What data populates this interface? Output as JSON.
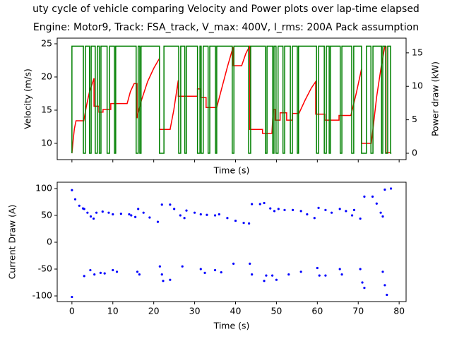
{
  "chart_data": [
    {
      "type": "line",
      "title": [
        "uty cycle of vehicle comparing Velocity and Power plots over lap-time elapsed",
        "Engine: Motor9, Track: FSA_track, V_max: 400V, I_rms: 200A Pack assumption"
      ],
      "xlabel": "Time (s)",
      "ylabel": "Velocity (m/s)",
      "y2label": "Power draw (kW)",
      "xlim": [
        -3.6,
        81.7
      ],
      "xticks": [
        0,
        10,
        20,
        30,
        40,
        50,
        60,
        70,
        80
      ],
      "xtick_labels": false,
      "ylim": [
        7.55,
        25.85
      ],
      "yticks": [
        10,
        15,
        20,
        25
      ],
      "y2lim": [
        -0.95,
        17.2
      ],
      "y2ticks": [
        0,
        5,
        10,
        15
      ],
      "series": [
        {
          "name": "Velocity",
          "color": "red",
          "axis": "y",
          "x": [
            0,
            0.3,
            0.6,
            1.0,
            2.9,
            3.5,
            4.3,
            5.4,
            5.4,
            6.6,
            6.6,
            7.6,
            7.6,
            9.5,
            9.5,
            13.5,
            14.3,
            15.2,
            15.9,
            15.9,
            17.0,
            18.5,
            20.0,
            21.4,
            21.4,
            24.0,
            24.9,
            26.0,
            26.0,
            30.7,
            30.7,
            31.4,
            31.4,
            32.8,
            32.8,
            35.4,
            36.5,
            38.0,
            39.4,
            39.4,
            41.5,
            42.5,
            43.5,
            43.5,
            46.6,
            46.6,
            48.9,
            49.2,
            49.7,
            49.7,
            50.9,
            50.9,
            52.5,
            52.5,
            53.9,
            53.9,
            55.5,
            57.0,
            58.5,
            59.6,
            59.6,
            61.8,
            61.8,
            65.3,
            65.3,
            68.2,
            69.5,
            70.8,
            70.8,
            73.2,
            74.5,
            75.6,
            76.5,
            76.8,
            76.8,
            78.0
          ],
          "values": [
            8.5,
            10.5,
            12.2,
            13.4,
            13.4,
            15.5,
            17.8,
            19.8,
            15.6,
            15.6,
            14.7,
            14.7,
            15.1,
            15.1,
            16.0,
            16.0,
            17.8,
            19.0,
            19.0,
            13.8,
            16.5,
            19.3,
            21.3,
            22.8,
            12.1,
            12.1,
            15.0,
            19.5,
            17.1,
            17.1,
            18.2,
            18.2,
            16.9,
            16.9,
            15.4,
            15.4,
            18.0,
            21.5,
            24.5,
            21.7,
            21.7,
            23.5,
            24.7,
            12.1,
            12.1,
            11.5,
            11.5,
            15.1,
            15.1,
            13.5,
            13.5,
            14.6,
            14.6,
            13.5,
            13.5,
            14.5,
            14.5,
            16.5,
            18.3,
            19.3,
            14.4,
            14.4,
            13.5,
            13.5,
            14.2,
            14.2,
            17.5,
            21.2,
            10.0,
            10.0,
            17.0,
            21.5,
            24.6,
            24.6,
            8.6,
            8.6
          ]
        },
        {
          "name": "Power",
          "color": "green",
          "axis": "y2",
          "x": [
            0,
            0,
            2.8,
            2.8,
            3.3,
            3.3,
            4.3,
            4.3,
            4.7,
            4.7,
            5.7,
            5.7,
            6.2,
            6.2,
            6.7,
            6.7,
            7.1,
            7.1,
            8.6,
            8.6,
            9.2,
            9.2,
            10.4,
            10.4,
            10.7,
            10.7,
            15.7,
            15.7,
            16.2,
            16.2,
            16.6,
            16.6,
            16.9,
            16.9,
            21.4,
            21.4,
            22.5,
            22.5,
            26.1,
            26.1,
            26.6,
            26.6,
            27.6,
            27.6,
            28.0,
            28.0,
            30.7,
            30.7,
            31.3,
            31.3,
            31.6,
            31.6,
            32.1,
            32.1,
            33.3,
            33.3,
            33.7,
            33.7,
            35.1,
            35.1,
            35.4,
            35.4,
            39.2,
            39.2,
            39.6,
            39.6,
            43.2,
            43.2,
            43.7,
            43.7,
            47.3,
            47.3,
            47.7,
            47.7,
            49.1,
            49.1,
            49.4,
            49.4,
            49.9,
            49.9,
            50.4,
            50.4,
            51.6,
            51.6,
            52.0,
            52.0,
            53.4,
            53.4,
            53.9,
            53.9,
            55.1,
            55.1,
            55.4,
            55.4,
            59.8,
            59.8,
            60.3,
            60.3,
            61.7,
            61.7,
            62.2,
            62.2,
            62.9,
            62.9,
            63.2,
            63.2,
            65.6,
            65.6,
            66.0,
            66.0,
            68.4,
            68.4,
            68.9,
            68.9,
            70.8,
            70.8,
            72.0,
            72.0,
            73.1,
            73.1,
            73.6,
            73.6,
            75.7,
            75.7,
            76.0,
            76.0,
            76.7,
            76.7,
            77.2,
            77.2,
            77.9,
            77.9,
            78.1
          ],
          "values": [
            0,
            16,
            16,
            0,
            0,
            16,
            16,
            0,
            0,
            16,
            16,
            0,
            0,
            16,
            16,
            0,
            0,
            16,
            16,
            0,
            0,
            16,
            16,
            0,
            0,
            16,
            16,
            0,
            0,
            16,
            16,
            0,
            0,
            16,
            16,
            0,
            0,
            16,
            16,
            0,
            0,
            16,
            16,
            0,
            0,
            16,
            16,
            0,
            0,
            16,
            16,
            0,
            0,
            16,
            16,
            0,
            0,
            16,
            16,
            0,
            0,
            16,
            16,
            0,
            0,
            16,
            16,
            0,
            0,
            16,
            16,
            0,
            0,
            16,
            16,
            0,
            0,
            16,
            16,
            0,
            0,
            16,
            16,
            0,
            0,
            16,
            16,
            0,
            0,
            16,
            16,
            0,
            0,
            16,
            16,
            0,
            0,
            16,
            16,
            0,
            0,
            16,
            16,
            0,
            0,
            16,
            16,
            0,
            0,
            16,
            16,
            0,
            0,
            16,
            16,
            0,
            0,
            16,
            16,
            0,
            0,
            16,
            16,
            0,
            0,
            16,
            16,
            0,
            0,
            16,
            16,
            0,
            0
          ]
        }
      ]
    },
    {
      "type": "scatter",
      "xlabel": "Time (s)",
      "ylabel": "Current Draw (A)",
      "xlim": [
        -3.6,
        81.7
      ],
      "xticks": [
        0,
        10,
        20,
        30,
        40,
        50,
        60,
        70,
        80
      ],
      "ylim": [
        -110.5,
        111.8
      ],
      "yticks": [
        -100,
        -50,
        0,
        50,
        100
      ],
      "series": [
        {
          "name": "Current",
          "color": "blue",
          "x": [
            0,
            0.8,
            1.8,
            2.7,
            3.0,
            3.8,
            4.6,
            5.3,
            6.0,
            7.5,
            9.0,
            10.0,
            12.0,
            14.0,
            14.5,
            15.5,
            16.2,
            17.5,
            19.0,
            21.0,
            22.0,
            24.0,
            25.0,
            26.5,
            27.5,
            28.0,
            30.0,
            31.5,
            33.0,
            35.0,
            36.0,
            38.0,
            40.0,
            42.0,
            43.3,
            44.0,
            46.0,
            47.0,
            48.5,
            49.5,
            50.5,
            52.0,
            54.0,
            56.0,
            57.5,
            59.3,
            60.3,
            62.0,
            63.5,
            65.5,
            67.0,
            68.5,
            69.0,
            70.5,
            71.5,
            73.5,
            74.5,
            75.5,
            76.0,
            76.5,
            78.0,
            0,
            3,
            4.5,
            5.5,
            7,
            8,
            10,
            11,
            16,
            16.5,
            21.5,
            22,
            22.3,
            24,
            27,
            31.5,
            32.5,
            35,
            36.5,
            39.5,
            43.5,
            44,
            47,
            47.5,
            49,
            50,
            53,
            56,
            60,
            60.5,
            62,
            65.5,
            66,
            70.5,
            71,
            71.5,
            76,
            76.5,
            77
          ],
          "values": [
            97,
            80,
            68,
            63,
            62,
            55,
            48,
            44,
            55,
            57,
            55,
            52,
            53,
            52,
            50,
            47,
            62,
            55,
            46,
            38,
            70,
            70,
            62,
            50,
            45,
            59,
            55,
            52,
            51,
            50,
            52,
            45,
            40,
            36,
            35,
            71,
            71,
            73,
            63,
            58,
            62,
            60,
            60,
            58,
            52,
            45,
            64,
            60,
            55,
            62,
            58,
            50,
            60,
            44,
            85,
            85,
            72,
            55,
            48,
            98,
            100,
            -102,
            -63,
            -52,
            -60,
            -57,
            -58,
            -52,
            -55,
            -55,
            -60,
            -45,
            -60,
            -72,
            -70,
            -45,
            -50,
            -57,
            -52,
            -56,
            -40,
            -40,
            -60,
            -72,
            -62,
            -62,
            -70,
            -60,
            -55,
            -48,
            -62,
            -62,
            -50,
            -60,
            -50,
            -75,
            -85,
            -55,
            -80,
            -98
          ]
        }
      ]
    }
  ]
}
